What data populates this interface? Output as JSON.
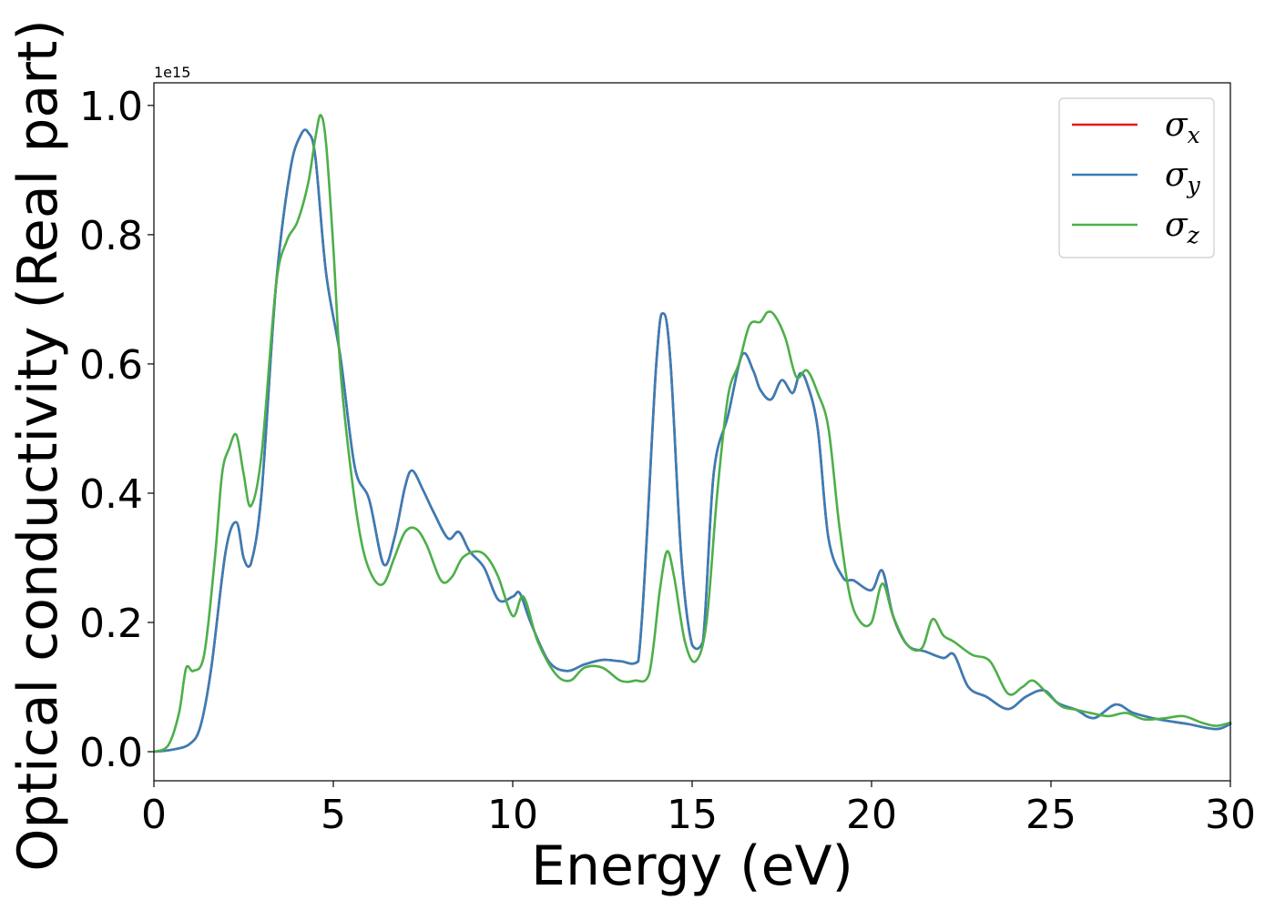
{
  "chart_data": {
    "type": "line",
    "xlabel": "Energy (eV)",
    "ylabel": "Optical conductivity (Real part)",
    "offset_text": "1e15",
    "xlim": [
      0,
      30
    ],
    "ylim": [
      -0.045,
      1.035
    ],
    "xticks": [
      0,
      5,
      10,
      15,
      20,
      25,
      30
    ],
    "xtick_labels": [
      "0",
      "5",
      "10",
      "15",
      "20",
      "25",
      "30"
    ],
    "yticks": [
      0.0,
      0.2,
      0.4,
      0.6,
      0.8,
      1.0
    ],
    "ytick_labels": [
      "0.0",
      "0.2",
      "0.4",
      "0.6",
      "0.8",
      "1.0"
    ],
    "grid": false,
    "legend_position": "top-right",
    "series": [
      {
        "name": "σx",
        "symbol": "σ",
        "subscript": "x",
        "color": "#e41a1c",
        "x": [
          0,
          0.5,
          1.0,
          1.3,
          1.6,
          2.0,
          2.3,
          2.5,
          2.7,
          3.0,
          3.4,
          3.8,
          4.1,
          4.3,
          4.5,
          4.8,
          5.2,
          5.6,
          6.0,
          6.4,
          6.7,
          7.0,
          7.2,
          7.5,
          7.8,
          8.2,
          8.5,
          8.8,
          9.2,
          9.6,
          10.0,
          10.2,
          10.5,
          11.0,
          11.5,
          12.0,
          12.5,
          13.0,
          13.5,
          14.0,
          14.2,
          14.4,
          14.7,
          15.0,
          15.3,
          15.6,
          16.0,
          16.4,
          16.7,
          16.9,
          17.2,
          17.5,
          17.8,
          18.0,
          18.2,
          18.5,
          18.8,
          19.2,
          19.5,
          20.0,
          20.3,
          20.6,
          21.0,
          21.5,
          22.0,
          22.3,
          22.7,
          23.2,
          23.8,
          24.3,
          24.8,
          25.2,
          25.7,
          26.2,
          26.8,
          27.3,
          28.0,
          28.8,
          29.6,
          30.0
        ],
        "y": [
          0.0,
          0.003,
          0.012,
          0.04,
          0.13,
          0.31,
          0.355,
          0.3,
          0.29,
          0.4,
          0.72,
          0.9,
          0.955,
          0.958,
          0.92,
          0.74,
          0.61,
          0.44,
          0.39,
          0.29,
          0.33,
          0.41,
          0.435,
          0.405,
          0.37,
          0.33,
          0.34,
          0.31,
          0.285,
          0.235,
          0.24,
          0.245,
          0.2,
          0.14,
          0.125,
          0.135,
          0.142,
          0.14,
          0.14,
          0.6,
          0.678,
          0.6,
          0.3,
          0.165,
          0.17,
          0.43,
          0.52,
          0.615,
          0.59,
          0.56,
          0.545,
          0.575,
          0.555,
          0.585,
          0.57,
          0.5,
          0.33,
          0.27,
          0.265,
          0.25,
          0.28,
          0.21,
          0.165,
          0.155,
          0.145,
          0.15,
          0.1,
          0.085,
          0.066,
          0.085,
          0.095,
          0.075,
          0.065,
          0.052,
          0.073,
          0.06,
          0.05,
          0.043,
          0.035,
          0.043
        ]
      },
      {
        "name": "σy",
        "symbol": "σ",
        "subscript": "y",
        "color": "#377eb8",
        "x": [
          0,
          0.5,
          1.0,
          1.3,
          1.6,
          2.0,
          2.3,
          2.5,
          2.7,
          3.0,
          3.4,
          3.8,
          4.1,
          4.3,
          4.5,
          4.8,
          5.2,
          5.6,
          6.0,
          6.4,
          6.7,
          7.0,
          7.2,
          7.5,
          7.8,
          8.2,
          8.5,
          8.8,
          9.2,
          9.6,
          10.0,
          10.2,
          10.5,
          11.0,
          11.5,
          12.0,
          12.5,
          13.0,
          13.5,
          14.0,
          14.2,
          14.4,
          14.7,
          15.0,
          15.3,
          15.6,
          16.0,
          16.4,
          16.7,
          16.9,
          17.2,
          17.5,
          17.8,
          18.0,
          18.2,
          18.5,
          18.8,
          19.2,
          19.5,
          20.0,
          20.3,
          20.6,
          21.0,
          21.5,
          22.0,
          22.3,
          22.7,
          23.2,
          23.8,
          24.3,
          24.8,
          25.2,
          25.7,
          26.2,
          26.8,
          27.3,
          28.0,
          28.8,
          29.6,
          30.0
        ],
        "y": [
          0.0,
          0.003,
          0.012,
          0.04,
          0.13,
          0.31,
          0.355,
          0.3,
          0.29,
          0.4,
          0.72,
          0.9,
          0.955,
          0.958,
          0.92,
          0.74,
          0.61,
          0.44,
          0.39,
          0.29,
          0.33,
          0.41,
          0.435,
          0.405,
          0.37,
          0.33,
          0.34,
          0.31,
          0.285,
          0.235,
          0.24,
          0.245,
          0.2,
          0.14,
          0.125,
          0.135,
          0.142,
          0.14,
          0.14,
          0.6,
          0.678,
          0.6,
          0.3,
          0.165,
          0.17,
          0.43,
          0.52,
          0.615,
          0.59,
          0.56,
          0.545,
          0.575,
          0.555,
          0.585,
          0.57,
          0.5,
          0.33,
          0.27,
          0.265,
          0.25,
          0.28,
          0.21,
          0.165,
          0.155,
          0.145,
          0.15,
          0.1,
          0.085,
          0.066,
          0.085,
          0.095,
          0.075,
          0.065,
          0.052,
          0.073,
          0.06,
          0.05,
          0.043,
          0.035,
          0.043
        ]
      },
      {
        "name": "σz",
        "symbol": "σ",
        "subscript": "z",
        "color": "#4daf4a",
        "x": [
          0,
          0.4,
          0.7,
          0.9,
          1.1,
          1.4,
          1.7,
          1.9,
          2.1,
          2.3,
          2.5,
          2.7,
          3.0,
          3.4,
          3.7,
          4.0,
          4.3,
          4.5,
          4.65,
          4.8,
          5.0,
          5.2,
          5.5,
          5.8,
          6.1,
          6.4,
          6.7,
          7.0,
          7.3,
          7.6,
          8.0,
          8.3,
          8.6,
          9.0,
          9.3,
          9.6,
          10.0,
          10.3,
          10.7,
          11.2,
          11.6,
          12.0,
          12.5,
          13.0,
          13.4,
          13.8,
          14.1,
          14.3,
          14.5,
          14.8,
          15.1,
          15.4,
          15.7,
          16.0,
          16.3,
          16.6,
          16.9,
          17.1,
          17.3,
          17.6,
          17.9,
          18.2,
          18.5,
          18.8,
          19.1,
          19.4,
          19.7,
          20.0,
          20.3,
          20.6,
          21.0,
          21.4,
          21.7,
          22.0,
          22.3,
          22.8,
          23.3,
          23.8,
          24.2,
          24.5,
          24.9,
          25.3,
          25.7,
          26.1,
          26.6,
          27.1,
          27.6,
          28.2,
          28.7,
          29.2,
          29.6,
          30.0
        ],
        "y": [
          0.0,
          0.01,
          0.06,
          0.13,
          0.125,
          0.15,
          0.3,
          0.43,
          0.47,
          0.49,
          0.43,
          0.38,
          0.46,
          0.72,
          0.79,
          0.82,
          0.88,
          0.95,
          0.985,
          0.94,
          0.78,
          0.59,
          0.43,
          0.32,
          0.27,
          0.26,
          0.3,
          0.34,
          0.345,
          0.32,
          0.265,
          0.27,
          0.3,
          0.31,
          0.3,
          0.27,
          0.21,
          0.24,
          0.17,
          0.12,
          0.11,
          0.13,
          0.13,
          0.11,
          0.11,
          0.12,
          0.25,
          0.31,
          0.27,
          0.17,
          0.14,
          0.2,
          0.4,
          0.55,
          0.6,
          0.66,
          0.665,
          0.68,
          0.675,
          0.64,
          0.58,
          0.59,
          0.555,
          0.5,
          0.35,
          0.24,
          0.2,
          0.2,
          0.26,
          0.21,
          0.165,
          0.16,
          0.205,
          0.18,
          0.17,
          0.15,
          0.14,
          0.09,
          0.1,
          0.11,
          0.09,
          0.07,
          0.065,
          0.06,
          0.055,
          0.06,
          0.05,
          0.052,
          0.055,
          0.045,
          0.04,
          0.045
        ]
      }
    ]
  }
}
